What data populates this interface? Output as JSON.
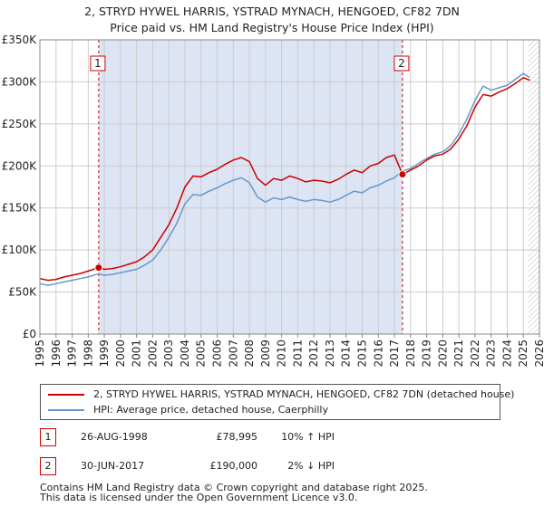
{
  "title_line1": "2, STRYD HYWEL HARRIS, YSTRAD MYNACH, HENGOED, CF82 7DN",
  "title_line2": "Price paid vs. HM Land Registry's House Price Index (HPI)",
  "colors": {
    "property": "#cc0000",
    "hpi": "#6699cc",
    "shade": "#dde4f4",
    "grid": "#cccccc"
  },
  "chart_data": {
    "type": "line",
    "xlim": [
      1995,
      2026
    ],
    "ylim": [
      0,
      350000
    ],
    "x_ticks": [
      "1995",
      "1996",
      "1997",
      "1998",
      "1999",
      "2000",
      "2001",
      "2002",
      "2003",
      "2004",
      "2005",
      "2006",
      "2007",
      "2008",
      "2009",
      "2010",
      "2011",
      "2012",
      "2013",
      "2014",
      "2015",
      "2016",
      "2017",
      "2018",
      "2019",
      "2020",
      "2021",
      "2022",
      "2023",
      "2024",
      "2025",
      "2026"
    ],
    "y_ticks": [
      {
        "value": 0,
        "label": "£0"
      },
      {
        "value": 50000,
        "label": "£50K"
      },
      {
        "value": 100000,
        "label": "£100K"
      },
      {
        "value": 150000,
        "label": "£150K"
      },
      {
        "value": 200000,
        "label": "£200K"
      },
      {
        "value": 250000,
        "label": "£250K"
      },
      {
        "value": 300000,
        "label": "£300K"
      },
      {
        "value": 350000,
        "label": "£350K"
      }
    ],
    "grid": true,
    "shaded_ranges": [
      [
        1998.65,
        2017.5
      ]
    ],
    "hatched_from": 2025.3,
    "series": [
      {
        "name": "2, STRYD HYWEL HARRIS, YSTRAD MYNACH, HENGOED, CF82 7DN (detached house)",
        "color": "#cc0000",
        "x": [
          1995,
          1995.5,
          1996,
          1996.5,
          1997,
          1997.5,
          1998,
          1998.65,
          1999,
          1999.5,
          2000,
          2000.5,
          2001,
          2001.5,
          2002,
          2002.5,
          2003,
          2003.5,
          2004,
          2004.5,
          2005,
          2005.5,
          2006,
          2006.5,
          2007,
          2007.5,
          2008,
          2008.5,
          2009,
          2009.5,
          2010,
          2010.5,
          2011,
          2011.5,
          2012,
          2012.5,
          2013,
          2013.5,
          2014,
          2014.5,
          2015,
          2015.5,
          2016,
          2016.5,
          2017,
          2017.5,
          2018,
          2018.5,
          2019,
          2019.5,
          2020,
          2020.5,
          2021,
          2021.5,
          2022,
          2022.5,
          2023,
          2023.5,
          2024,
          2024.5,
          2025,
          2025.4
        ],
        "y": [
          66000,
          64000,
          65000,
          68000,
          70000,
          72000,
          75000,
          78995,
          77000,
          78000,
          80000,
          83000,
          86000,
          92000,
          100000,
          115000,
          130000,
          150000,
          175000,
          188000,
          187000,
          192000,
          196000,
          202000,
          207000,
          210000,
          205000,
          185000,
          177000,
          185000,
          183000,
          188000,
          185000,
          181000,
          183000,
          182000,
          180000,
          184000,
          190000,
          195000,
          192000,
          200000,
          203000,
          210000,
          213000,
          190000,
          195000,
          200000,
          207000,
          212000,
          214000,
          220000,
          232000,
          248000,
          270000,
          285000,
          283000,
          288000,
          292000,
          298000,
          305000,
          302000
        ]
      },
      {
        "name": "HPI: Average price, detached house, Caerphilly",
        "color": "#6699cc",
        "x": [
          1995,
          1995.5,
          1996,
          1996.5,
          1997,
          1997.5,
          1998,
          1998.65,
          1999,
          1999.5,
          2000,
          2000.5,
          2001,
          2001.5,
          2002,
          2002.5,
          2003,
          2003.5,
          2004,
          2004.5,
          2005,
          2005.5,
          2006,
          2006.5,
          2007,
          2007.5,
          2008,
          2008.5,
          2009,
          2009.5,
          2010,
          2010.5,
          2011,
          2011.5,
          2012,
          2012.5,
          2013,
          2013.5,
          2014,
          2014.5,
          2015,
          2015.5,
          2016,
          2016.5,
          2017,
          2017.5,
          2018,
          2018.5,
          2019,
          2019.5,
          2020,
          2020.5,
          2021,
          2021.5,
          2022,
          2022.5,
          2023,
          2023.5,
          2024,
          2024.5,
          2025,
          2025.4
        ],
        "y": [
          60000,
          58000,
          60000,
          62000,
          64000,
          66000,
          68000,
          71800,
          70000,
          71000,
          73000,
          75000,
          77000,
          82000,
          88000,
          100000,
          115000,
          132000,
          155000,
          166000,
          165000,
          170000,
          174000,
          179000,
          183000,
          186000,
          180000,
          163000,
          157000,
          162000,
          160000,
          163000,
          160000,
          158000,
          160000,
          159000,
          157000,
          160000,
          165000,
          170000,
          168000,
          174000,
          177000,
          182000,
          186000,
          194000,
          197000,
          203000,
          209000,
          214000,
          217000,
          224000,
          238000,
          256000,
          278000,
          295000,
          290000,
          293000,
          296000,
          303000,
          310000,
          305000
        ]
      }
    ],
    "markers": [
      {
        "label": "1",
        "x": 1998.65,
        "y": 78995
      },
      {
        "label": "2",
        "x": 2017.5,
        "y": 190000
      }
    ]
  },
  "legend": {
    "property_label": "2, STRYD HYWEL HARRIS, YSTRAD MYNACH, HENGOED, CF82 7DN (detached house)",
    "hpi_label": "HPI: Average price, detached house, Caerphilly"
  },
  "sales": [
    {
      "num": "1",
      "date": "26-AUG-1998",
      "price": "£78,995",
      "hpi": "10% ↑ HPI"
    },
    {
      "num": "2",
      "date": "30-JUN-2017",
      "price": "£190,000",
      "hpi": "2% ↓ HPI"
    }
  ],
  "footer": {
    "line1": "Contains HM Land Registry data © Crown copyright and database right 2025.",
    "line2": "This data is licensed under the Open Government Licence v3.0."
  }
}
